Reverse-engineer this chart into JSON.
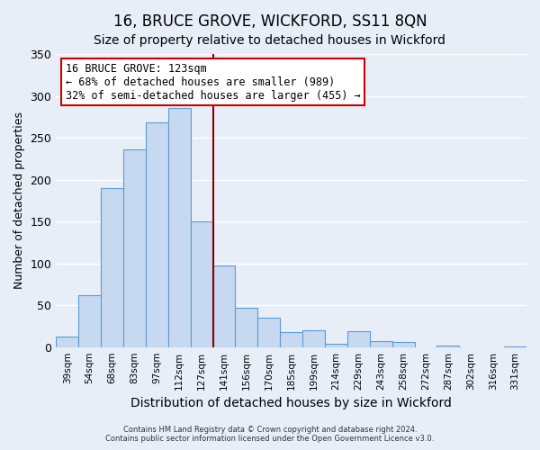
{
  "title": "16, BRUCE GROVE, WICKFORD, SS11 8QN",
  "subtitle": "Size of property relative to detached houses in Wickford",
  "xlabel": "Distribution of detached houses by size in Wickford",
  "ylabel": "Number of detached properties",
  "bar_labels": [
    "39sqm",
    "54sqm",
    "68sqm",
    "83sqm",
    "97sqm",
    "112sqm",
    "127sqm",
    "141sqm",
    "156sqm",
    "170sqm",
    "185sqm",
    "199sqm",
    "214sqm",
    "229sqm",
    "243sqm",
    "258sqm",
    "272sqm",
    "287sqm",
    "302sqm",
    "316sqm",
    "331sqm"
  ],
  "bar_values": [
    13,
    62,
    190,
    236,
    268,
    285,
    150,
    97,
    47,
    35,
    18,
    20,
    4,
    19,
    7,
    6,
    0,
    2,
    0,
    0,
    1
  ],
  "bar_color": "#c6d9f0",
  "bar_edge_color": "#5b9bd5",
  "vline_color": "#8b0000",
  "annotation_title": "16 BRUCE GROVE: 123sqm",
  "annotation_line1": "← 68% of detached houses are smaller (989)",
  "annotation_line2": "32% of semi-detached houses are larger (455) →",
  "annotation_box_color": "white",
  "annotation_box_edge_color": "#cc0000",
  "ylim": [
    0,
    350
  ],
  "yticks": [
    0,
    50,
    100,
    150,
    200,
    250,
    300,
    350
  ],
  "footer1": "Contains HM Land Registry data © Crown copyright and database right 2024.",
  "footer2": "Contains public sector information licensed under the Open Government Licence v3.0.",
  "background_color": "#e8eef8",
  "grid_color": "white",
  "title_fontsize": 12,
  "subtitle_fontsize": 10,
  "ylabel_fontsize": 9,
  "xlabel_fontsize": 10,
  "vline_bar_index": 6
}
